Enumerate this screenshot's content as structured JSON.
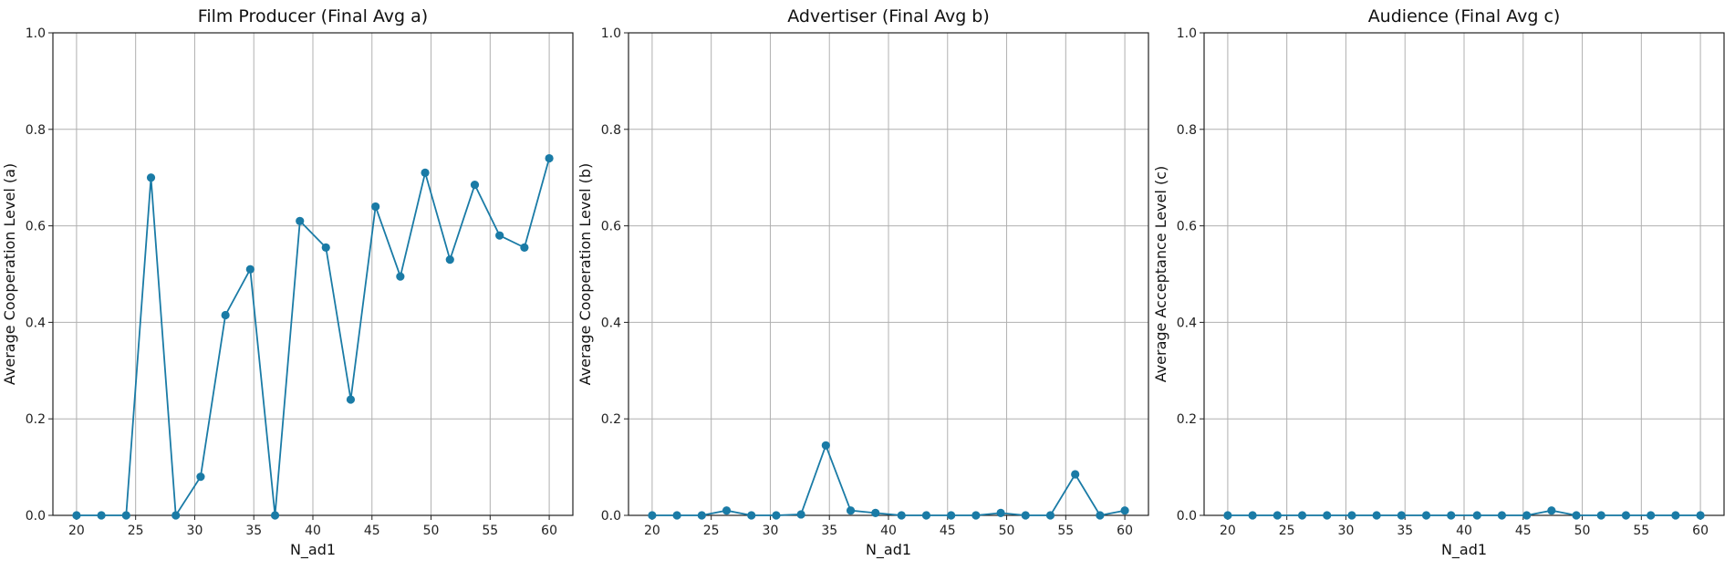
{
  "chart_data": [
    {
      "type": "line",
      "title": "Film Producer (Final Avg a)",
      "xlabel": "N_ad1",
      "ylabel": "Average Cooperation Level (a)",
      "xlim": [
        18,
        62
      ],
      "ylim": [
        0,
        1
      ],
      "xticks": [
        "20",
        "25",
        "30",
        "35",
        "40",
        "45",
        "50",
        "55",
        "60"
      ],
      "yticks": [
        "0.0",
        "0.2",
        "0.4",
        "0.6",
        "0.8",
        "1.0"
      ],
      "grid": true,
      "color": "#1a7ba6",
      "series": [
        {
          "x": [
            20,
            22.1,
            24.2,
            26.3,
            28.4,
            30.5,
            32.6,
            34.7,
            36.8,
            38.9,
            41.1,
            43.2,
            45.3,
            47.4,
            49.5,
            51.6,
            53.7,
            55.8,
            57.9,
            60
          ],
          "values": [
            0.0,
            0.0,
            0.0,
            0.7,
            0.0,
            0.08,
            0.415,
            0.51,
            0.0,
            0.61,
            0.555,
            0.24,
            0.64,
            0.495,
            0.71,
            0.53,
            0.685,
            0.58,
            0.555,
            0.74
          ]
        }
      ]
    },
    {
      "type": "line",
      "title": "Advertiser (Final Avg b)",
      "xlabel": "N_ad1",
      "ylabel": "Average Cooperation Level (b)",
      "xlim": [
        18,
        62
      ],
      "ylim": [
        0,
        1
      ],
      "xticks": [
        "20",
        "25",
        "30",
        "35",
        "40",
        "45",
        "50",
        "55",
        "60"
      ],
      "yticks": [
        "0.0",
        "0.2",
        "0.4",
        "0.6",
        "0.8",
        "1.0"
      ],
      "grid": true,
      "color": "#1a7ba6",
      "series": [
        {
          "x": [
            20,
            22.1,
            24.2,
            26.3,
            28.4,
            30.5,
            32.6,
            34.7,
            36.8,
            38.9,
            41.1,
            43.2,
            45.3,
            47.4,
            49.5,
            51.6,
            53.7,
            55.8,
            57.9,
            60
          ],
          "values": [
            0.0,
            0.0,
            0.0,
            0.01,
            0.0,
            0.0,
            0.002,
            0.145,
            0.01,
            0.005,
            0.0,
            0.0,
            0.0,
            0.0,
            0.005,
            0.0,
            0.0,
            0.085,
            0.0,
            0.01
          ]
        }
      ]
    },
    {
      "type": "line",
      "title": "Audience (Final Avg c)",
      "xlabel": "N_ad1",
      "ylabel": "Average Acceptance Level (c)",
      "xlim": [
        18,
        62
      ],
      "ylim": [
        0,
        1
      ],
      "xticks": [
        "20",
        "25",
        "30",
        "35",
        "40",
        "45",
        "50",
        "55",
        "60"
      ],
      "yticks": [
        "0.0",
        "0.2",
        "0.4",
        "0.6",
        "0.8",
        "1.0"
      ],
      "grid": true,
      "color": "#1a7ba6",
      "series": [
        {
          "x": [
            20,
            22.1,
            24.2,
            26.3,
            28.4,
            30.5,
            32.6,
            34.7,
            36.8,
            38.9,
            41.1,
            43.2,
            45.3,
            47.4,
            49.5,
            51.6,
            53.7,
            55.8,
            57.9,
            60
          ],
          "values": [
            0.0,
            0.0,
            0.0,
            0.0,
            0.0,
            0.0,
            0.0,
            0.0,
            0.0,
            0.0,
            0.0,
            0.0,
            0.0,
            0.01,
            0.0,
            0.0,
            0.0,
            0.0,
            0.0,
            0.0
          ]
        }
      ]
    }
  ]
}
